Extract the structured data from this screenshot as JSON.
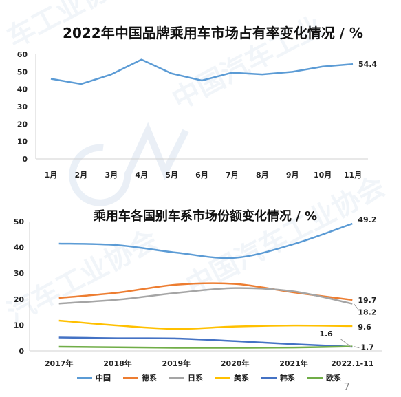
{
  "page": {
    "number": "7"
  },
  "colors": {
    "axis": "#d0d0d0",
    "text": "#222222",
    "series1": "#5b9bd5",
    "de": "#ed7d31",
    "jp": "#a5a5a5",
    "us": "#ffc000",
    "kr": "#4472c4",
    "eu": "#70ad47"
  },
  "chart_data": [
    {
      "type": "line",
      "title": "2022年中国品牌乘用车市场占有率变化情况 / %",
      "categories": [
        "1月",
        "2月",
        "3月",
        "4月",
        "5月",
        "6月",
        "7月",
        "8月",
        "9月",
        "10月",
        "11月"
      ],
      "y_ticks": [
        "0",
        "10",
        "20",
        "30",
        "40",
        "50",
        "60"
      ],
      "ylim": [
        0,
        60
      ],
      "series": [
        {
          "values": [
            46,
            43,
            48.5,
            57,
            49,
            45,
            49.5,
            48.5,
            50,
            53,
            54.4
          ]
        }
      ],
      "data_labels": [
        {
          "index": 10,
          "text": "54.4"
        }
      ],
      "grid": false
    },
    {
      "type": "line",
      "title": "乘用车各国别车系市场份额变化情况 / %",
      "categories": [
        "2017年",
        "2018年",
        "2019年",
        "2020年",
        "2021年",
        "2022.1-11"
      ],
      "y_ticks": [
        "0",
        "10",
        "20",
        "30",
        "40",
        "50"
      ],
      "ylim": [
        0,
        50
      ],
      "series": [
        {
          "name": "中国",
          "values": [
            41.5,
            40.9,
            38,
            36,
            41.3,
            49.2
          ]
        },
        {
          "name": "德系",
          "values": [
            20.5,
            22.5,
            25.6,
            25.9,
            22.6,
            19.7
          ]
        },
        {
          "name": "日系",
          "values": [
            18.3,
            19.8,
            22.4,
            24.3,
            23,
            18.2
          ]
        },
        {
          "name": "美系",
          "values": [
            11.7,
            9.8,
            8.5,
            9.4,
            9.8,
            9.6
          ]
        },
        {
          "name": "韩系",
          "values": [
            5.2,
            4.9,
            4.8,
            3.8,
            2.6,
            1.6
          ]
        },
        {
          "name": "欧系",
          "values": [
            1.6,
            1.4,
            1.2,
            1.2,
            1.3,
            1.7
          ]
        }
      ],
      "data_labels": [
        "49.2",
        "19.7",
        "18.2",
        "9.6",
        "1.6",
        "1.7"
      ],
      "legend_position": "bottom",
      "grid": false
    }
  ]
}
